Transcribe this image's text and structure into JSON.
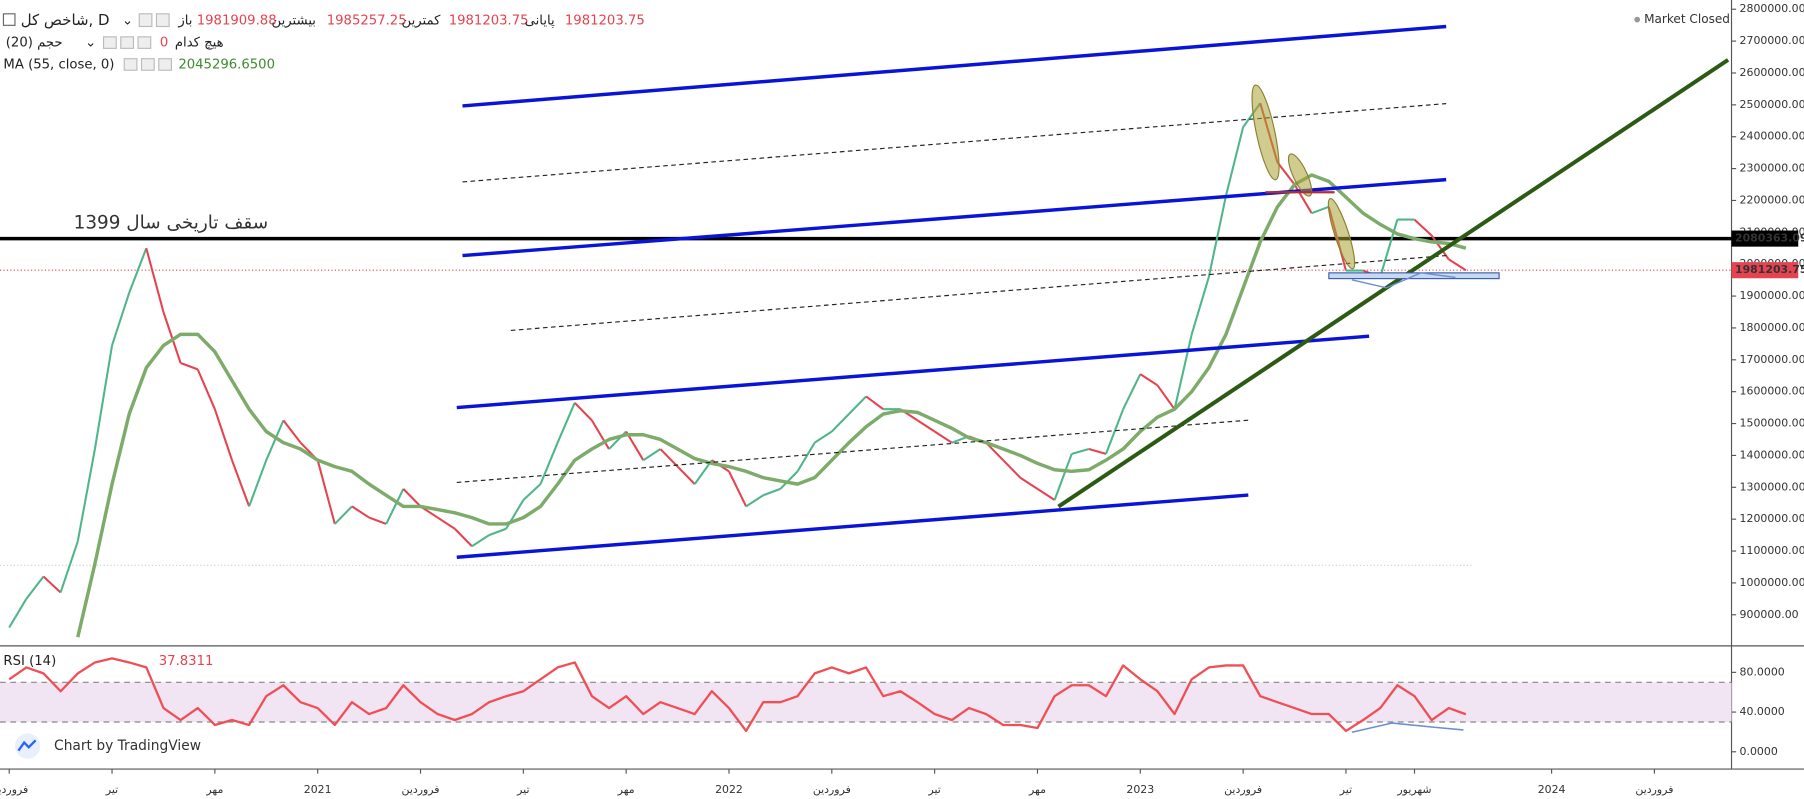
{
  "chart_data": [
    {
      "type": "line",
      "title": "شاخص کل, D",
      "ohlc": [
        {
          "label": "باز",
          "value": 1981909.88
        },
        {
          "label": "بیشترین",
          "value": 1985257.25
        },
        {
          "label": "کمترین",
          "value": 1981203.75
        },
        {
          "label": "پایانی",
          "value": 1981203.75
        }
      ],
      "volume": {
        "name": "حجم (20)",
        "value": 0,
        "text": "هیچ کدام"
      },
      "status": "Market Closed",
      "annotation": "سقف تاریخی سال 1399",
      "categories": [
        "فروردین",
        null,
        null,
        null,
        null,
        null,
        "تیر",
        null,
        null,
        null,
        null,
        null,
        "مهر",
        null,
        null,
        null,
        null,
        null,
        "2021",
        null,
        null,
        null,
        null,
        null,
        "فروردین",
        null,
        null,
        null,
        null,
        null,
        "تیر",
        null,
        null,
        null,
        null,
        null,
        "مهر",
        null,
        null,
        null,
        null,
        null,
        "2022",
        null,
        null,
        null,
        null,
        null,
        "فروردین",
        null,
        null,
        null,
        null,
        null,
        "تیر",
        null,
        null,
        null,
        null,
        null,
        "مهر",
        null,
        null,
        null,
        null,
        null,
        "2023",
        null,
        null,
        null,
        null,
        null,
        "فروردین",
        null,
        null,
        null,
        null,
        null,
        "تیر",
        null,
        null,
        null,
        "شهریور",
        null,
        null,
        null,
        null,
        null,
        null,
        null,
        "2024",
        null,
        null,
        null,
        null,
        null,
        "فروردین"
      ],
      "series": [
        {
          "up_color": "#4fb58a",
          "down_color": "#e5434f",
          "values": [
            860000,
            950000,
            1020000,
            970000,
            1130000,
            1420000,
            1745000,
            1910000,
            2050000,
            1850000,
            1690000,
            1670000,
            1545000,
            1385000,
            1240000,
            1385000,
            1510000,
            1440000,
            1385000,
            1185000,
            1240000,
            1205000,
            1185000,
            1295000,
            1240000,
            1205000,
            1170000,
            1115000,
            1150000,
            1170000,
            1260000,
            1310000,
            1440000,
            1565000,
            1510000,
            1420000,
            1475000,
            1385000,
            1420000,
            1365000,
            1310000,
            1385000,
            1350000,
            1240000,
            1275000,
            1295000,
            1350000,
            1440000,
            1475000,
            1530000,
            1585000,
            1545000,
            1545000,
            1510000,
            1475000,
            1440000,
            1460000,
            1440000,
            1385000,
            1330000,
            1295000,
            1260000,
            1405000,
            1420000,
            1405000,
            1545000,
            1655000,
            1620000,
            1545000,
            1780000,
            1960000,
            2215000,
            2430000,
            2505000,
            2320000,
            2250000,
            2160000,
            2180000,
            1980000,
            1980000,
            1960000,
            2140000,
            2140000,
            2090000,
            2015000,
            1981203.75,
            null,
            null,
            null,
            null,
            null,
            null,
            null,
            null,
            null,
            null,
            null
          ]
        },
        {
          "name": "MA (55, close, 0)",
          "last": "2045296.6500",
          "color": "#7cab6a",
          "values": [
            null,
            null,
            null,
            null,
            830000,
            1060000,
            1310000,
            1530000,
            1675000,
            1745000,
            1780000,
            1780000,
            1725000,
            1635000,
            1545000,
            1475000,
            1440000,
            1420000,
            1385000,
            1365000,
            1350000,
            1310000,
            1275000,
            1240000,
            1240000,
            1230000,
            1220000,
            1205000,
            1185000,
            1185000,
            1205000,
            1240000,
            1310000,
            1385000,
            1420000,
            1450000,
            1465000,
            1465000,
            1450000,
            1420000,
            1390000,
            1375000,
            1365000,
            1350000,
            1330000,
            1320000,
            1310000,
            1330000,
            1385000,
            1440000,
            1490000,
            1530000,
            1540000,
            1535000,
            1510000,
            1485000,
            1455000,
            1440000,
            1420000,
            1400000,
            1375000,
            1355000,
            1350000,
            1355000,
            1385000,
            1420000,
            1475000,
            1520000,
            1545000,
            1600000,
            1675000,
            1780000,
            1925000,
            2070000,
            2180000,
            2250000,
            2280000,
            2260000,
            2210000,
            2160000,
            2125000,
            2095000,
            2080000,
            2070000,
            2065000,
            2050000,
            null,
            null,
            null,
            null,
            null,
            null,
            null,
            null,
            null,
            null,
            null
          ]
        }
      ],
      "hlines": [
        {
          "value": 2080363.09,
          "color": "#000000"
        },
        {
          "value": 1981203.75,
          "color": "#e5434f"
        }
      ],
      "ylim": [
        806000,
        2829000
      ],
      "yticks": [
        {
          "value": 900000,
          "label": "900000.00"
        },
        {
          "value": 1000000,
          "label": "1000000.00"
        },
        {
          "value": 1100000,
          "label": "1100000.00"
        },
        {
          "value": 1200000,
          "label": "1200000.00"
        },
        {
          "value": 1300000,
          "label": "1300000.00"
        },
        {
          "value": 1400000,
          "label": "1400000.00"
        },
        {
          "value": 1500000,
          "label": "1500000.00"
        },
        {
          "value": 1600000,
          "label": "1600000.00"
        },
        {
          "value": 1700000,
          "label": "1700000.00"
        },
        {
          "value": 1800000,
          "label": "1800000.00"
        },
        {
          "value": 1900000,
          "label": "1900000.00"
        },
        {
          "value": 2000000,
          "label": "2000000.00"
        },
        {
          "value": 2100000,
          "label": "2100000.00"
        },
        {
          "value": 2200000,
          "label": "2200000.00"
        },
        {
          "value": 2300000,
          "label": "2300000.00"
        },
        {
          "value": 2400000,
          "label": "2400000.00"
        },
        {
          "value": 2500000,
          "label": "2500000.00"
        },
        {
          "value": 2600000,
          "label": "2600000.00"
        },
        {
          "value": 2700000,
          "label": "2700000.00"
        },
        {
          "value": 2800000,
          "label": "2800000.00"
        }
      ],
      "grid": false
    },
    {
      "type": "line",
      "title": "RSI (14)",
      "series": [
        {
          "color": "#ef4f55",
          "values": [
            73,
            85,
            79,
            61,
            79,
            90,
            94,
            90,
            85,
            44,
            32,
            44,
            27,
            32,
            27,
            56,
            67,
            50,
            44,
            27,
            50,
            38,
            44,
            67,
            50,
            38,
            32,
            38,
            50,
            56,
            61,
            73,
            85,
            90,
            56,
            44,
            56,
            38,
            50,
            44,
            38,
            61,
            44,
            21,
            50,
            50,
            56,
            79,
            85,
            79,
            85,
            56,
            61,
            50,
            38,
            32,
            44,
            38,
            27,
            27,
            24,
            56,
            67,
            67,
            56,
            87,
            73,
            61,
            38,
            73,
            85,
            87,
            87,
            56,
            50,
            44,
            38,
            38,
            21,
            32,
            44,
            67,
            56,
            32,
            44,
            37.8311,
            null,
            null,
            null,
            null,
            null,
            null,
            null,
            null,
            null,
            null,
            null
          ]
        }
      ],
      "band": [
        30,
        70
      ],
      "band_color": "#f1e4f3",
      "ylim": [
        -17.4,
        105.5
      ],
      "yticks": [
        {
          "value": 0,
          "label": "0.0000"
        },
        {
          "value": 40,
          "label": "40.0000"
        },
        {
          "value": 80,
          "label": "80.0000"
        }
      ],
      "grid": false
    }
  ],
  "branding": "Chart by TradingView"
}
